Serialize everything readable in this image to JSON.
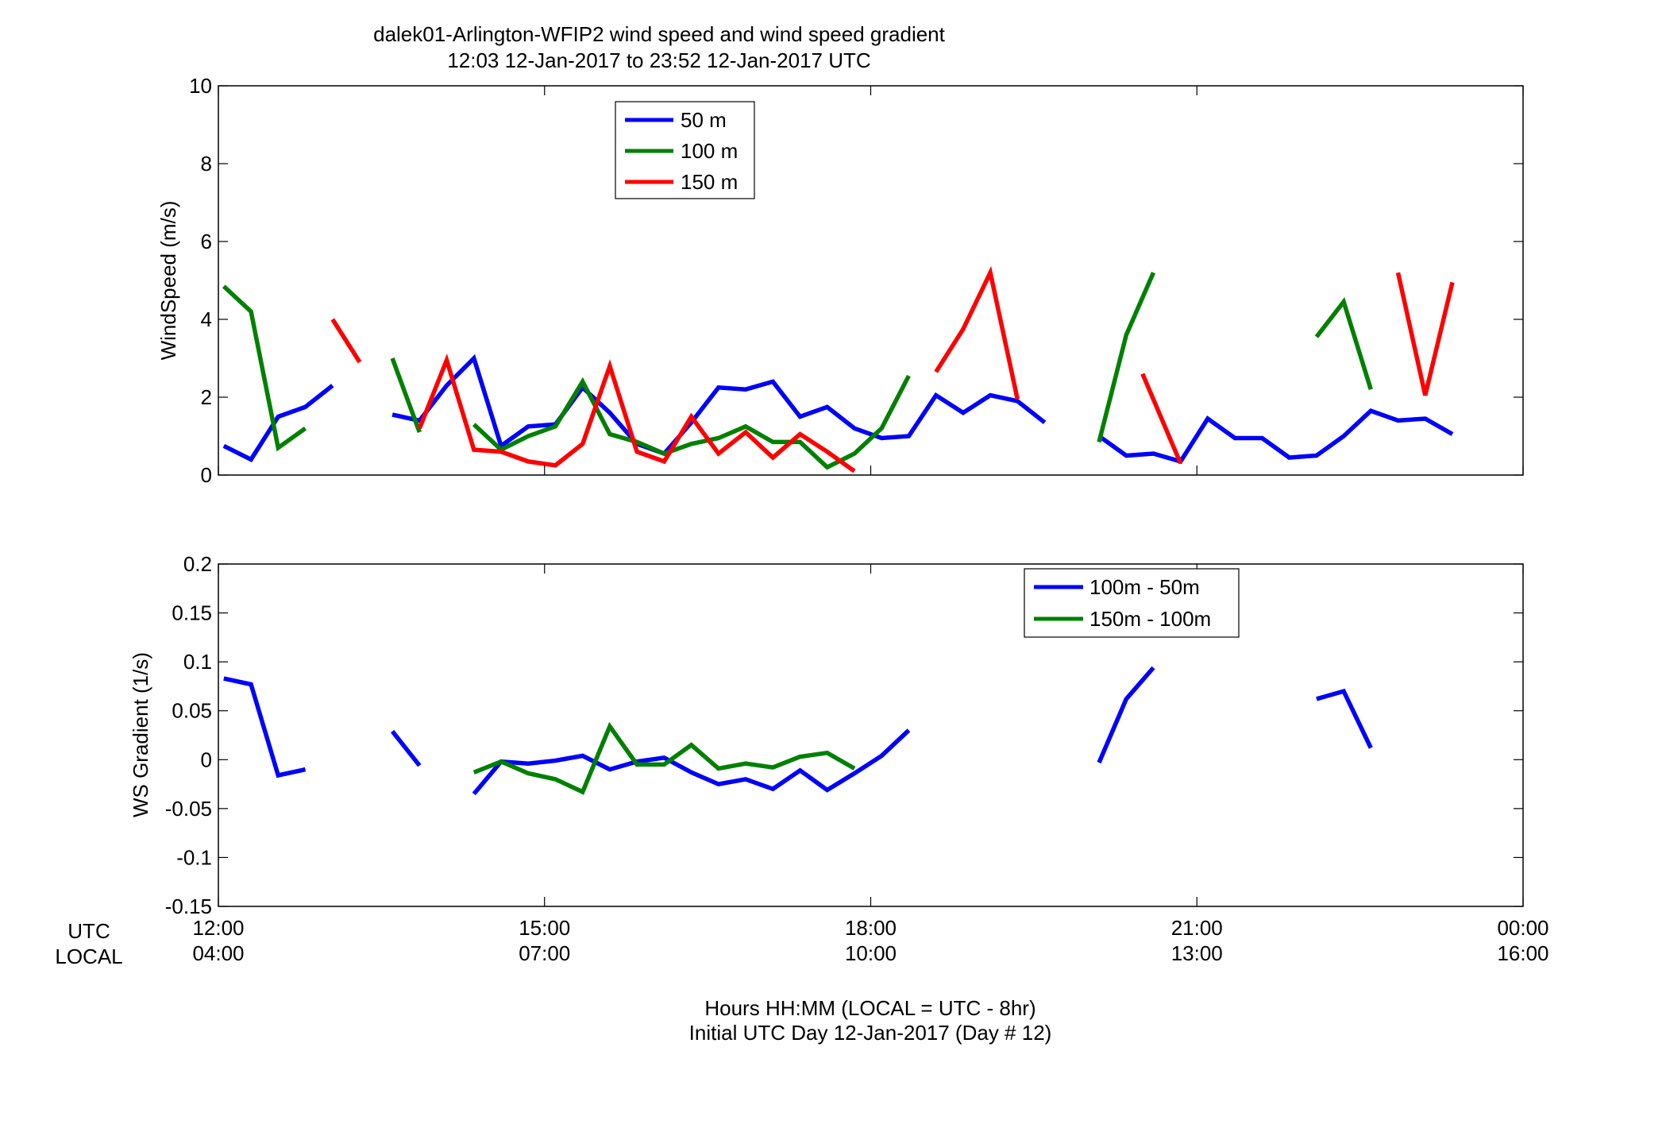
{
  "figure": {
    "title_line1": "dalek01-Arlington-WFIP2  wind speed and wind speed gradient",
    "title_line2": "12:03 12-Jan-2017 to 23:52 12-Jan-2017  UTC",
    "xlabel_line1": "Hours HH:MM  (LOCAL = UTC - 8hr)",
    "xlabel_line2": "Initial UTC Day 12-Jan-2017 (Day # 12)",
    "row_label_utc": "UTC",
    "row_label_local": "LOCAL",
    "xticks_utc": [
      "12:00",
      "15:00",
      "18:00",
      "21:00",
      "00:00"
    ],
    "xticks_local": [
      "04:00",
      "07:00",
      "10:00",
      "13:00",
      "16:00"
    ],
    "colors": {
      "blue": "#0000ff",
      "green": "#008000",
      "red": "#ff0000"
    }
  },
  "chart_data": [
    {
      "type": "line",
      "ylabel": "WindSpeed (m/s)",
      "xlim": [
        12,
        24
      ],
      "ylim": [
        0,
        10
      ],
      "yticks": [
        0,
        2,
        4,
        6,
        8,
        10
      ],
      "ytick_labels": [
        "0",
        "2",
        "4",
        "6",
        "8",
        "10"
      ],
      "legend_position": "top-left",
      "series": [
        {
          "name": "50 m",
          "color": "#0000ff",
          "x": [
            12.05,
            12.3,
            12.55,
            12.8,
            13.05,
            null,
            13.6,
            13.85,
            14.1,
            14.35,
            14.6,
            14.85,
            15.1,
            15.35,
            15.6,
            15.85,
            16.1,
            16.35,
            16.6,
            16.85,
            17.1,
            17.35,
            17.6,
            17.85,
            18.1,
            18.35,
            18.6,
            18.85,
            19.1,
            19.35,
            19.6,
            null,
            20.1,
            20.35,
            20.6,
            20.85,
            21.1,
            21.35,
            21.6,
            21.85,
            22.1,
            22.35,
            22.6,
            22.85,
            23.1,
            23.35
          ],
          "y": [
            0.75,
            0.4,
            1.5,
            1.75,
            2.3,
            null,
            1.55,
            1.4,
            2.3,
            3.0,
            0.75,
            1.25,
            1.3,
            2.25,
            1.6,
            0.8,
            0.55,
            1.35,
            2.25,
            2.2,
            2.4,
            1.5,
            1.75,
            1.2,
            0.95,
            1.0,
            2.05,
            1.6,
            2.05,
            1.9,
            1.35,
            null,
            1.0,
            0.5,
            0.55,
            0.35,
            1.45,
            0.95,
            0.95,
            0.45,
            0.5,
            1.0,
            1.65,
            1.4,
            1.45,
            1.05
          ]
        },
        {
          "name": "100 m",
          "color": "#008000",
          "x": [
            12.05,
            12.3,
            12.55,
            12.8,
            null,
            13.6,
            13.85,
            null,
            14.35,
            14.6,
            14.85,
            15.1,
            15.35,
            15.6,
            15.85,
            16.1,
            16.35,
            16.6,
            16.85,
            17.1,
            17.35,
            17.6,
            17.85,
            18.1,
            18.35,
            null,
            20.1,
            20.35,
            20.6,
            null,
            22.1,
            22.35,
            22.6
          ],
          "y": [
            4.85,
            4.2,
            0.7,
            1.2,
            null,
            3.0,
            1.1,
            null,
            1.3,
            0.65,
            1.0,
            1.25,
            2.4,
            1.05,
            0.85,
            0.55,
            0.8,
            0.95,
            1.25,
            0.85,
            0.85,
            0.2,
            0.55,
            1.2,
            2.55,
            null,
            0.85,
            3.6,
            5.2,
            null,
            3.55,
            4.45,
            2.2
          ]
        },
        {
          "name": "150 m",
          "color": "#ff0000",
          "x": [
            13.05,
            13.3,
            null,
            13.85,
            14.1,
            14.35,
            14.6,
            14.85,
            15.1,
            15.35,
            15.6,
            15.85,
            16.1,
            16.35,
            16.6,
            16.85,
            17.1,
            17.35,
            17.6,
            17.85,
            null,
            18.6,
            18.85,
            19.1,
            19.35,
            null,
            20.5,
            20.85,
            null,
            22.85,
            23.1,
            23.35
          ],
          "y": [
            4.0,
            2.9,
            null,
            1.2,
            2.95,
            0.65,
            0.6,
            0.35,
            0.25,
            0.8,
            2.8,
            0.6,
            0.35,
            1.5,
            0.55,
            1.1,
            0.45,
            1.05,
            0.6,
            0.1,
            null,
            2.65,
            3.75,
            5.2,
            1.95,
            null,
            2.6,
            0.3,
            null,
            5.2,
            2.05,
            4.95
          ]
        }
      ]
    },
    {
      "type": "line",
      "ylabel": "WS Gradient (1/s)",
      "xlim": [
        12,
        24
      ],
      "ylim": [
        -0.15,
        0.2
      ],
      "yticks": [
        -0.15,
        -0.1,
        -0.05,
        0,
        0.05,
        0.1,
        0.15,
        0.2
      ],
      "ytick_labels": [
        "-0.15",
        "-0.1",
        "-0.05",
        "0",
        "0.05",
        "0.1",
        "0.15",
        "0.2"
      ],
      "legend_position": "top-right",
      "series": [
        {
          "name": "100m - 50m",
          "color": "#0000ff",
          "x": [
            12.05,
            12.3,
            12.55,
            12.8,
            null,
            13.6,
            13.85,
            null,
            14.35,
            14.6,
            14.85,
            15.1,
            15.35,
            15.6,
            15.85,
            16.1,
            16.35,
            16.6,
            16.85,
            17.1,
            17.35,
            17.6,
            17.85,
            18.1,
            18.35,
            null,
            20.1,
            20.35,
            20.6,
            null,
            22.1,
            22.35,
            22.6
          ],
          "y": [
            0.083,
            0.077,
            -0.016,
            -0.01,
            null,
            0.029,
            -0.006,
            null,
            -0.035,
            -0.002,
            -0.004,
            -0.001,
            0.004,
            -0.01,
            -0.002,
            0.002,
            -0.013,
            -0.025,
            -0.02,
            -0.03,
            -0.011,
            -0.031,
            -0.014,
            0.004,
            0.03,
            null,
            -0.003,
            0.062,
            0.094,
            null,
            0.062,
            0.07,
            0.012
          ]
        },
        {
          "name": "150m - 100m",
          "color": "#008000",
          "x": [
            14.35,
            14.6,
            14.85,
            15.1,
            15.35,
            15.6,
            15.85,
            16.1,
            16.35,
            16.6,
            16.85,
            17.1,
            17.35,
            17.6,
            17.85
          ],
          "y": [
            -0.013,
            -0.002,
            -0.014,
            -0.02,
            -0.033,
            0.034,
            -0.005,
            -0.005,
            0.015,
            -0.009,
            -0.004,
            -0.008,
            0.003,
            0.007,
            -0.009
          ]
        }
      ]
    }
  ]
}
